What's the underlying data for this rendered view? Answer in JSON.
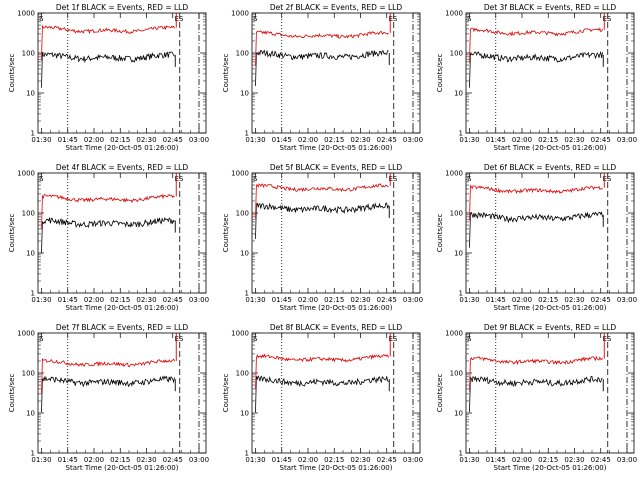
{
  "chart_data": {
    "type": "line",
    "ylabel": "Counts/sec",
    "xlabel": "Start Time (20-Oct-05 01:26:00)",
    "x_ticks": [
      "01:30",
      "01:45",
      "02:00",
      "02:15",
      "02:30",
      "02:45",
      "03:00"
    ],
    "y_scale": "log",
    "ylim": [
      1,
      1000
    ],
    "y_ticks": [
      "1",
      "10",
      "100",
      "1000"
    ],
    "markers": [
      "S",
      "E"
    ],
    "colors": {
      "events": "#000000",
      "lld": "#dd0000"
    },
    "panels": [
      {
        "title": "Det 1f BLACK = Events, RED = LLD",
        "ds_label": "ES",
        "events": 90,
        "lld": 430
      },
      {
        "title": "Det 2f BLACK = Events, RED = LLD",
        "ds_label": "ES",
        "events": 100,
        "lld": 320
      },
      {
        "title": "Det 3f BLACK = Events, RED = LLD",
        "ds_label": "ES",
        "events": 90,
        "lld": 380
      },
      {
        "title": "Det 4f BLACK = Events, RED = LLD",
        "ds_label": "ES",
        "events": 65,
        "lld": 260
      },
      {
        "title": "Det 5f BLACK = Events, RED = LLD",
        "ds_label": "ES",
        "events": 150,
        "lld": 480
      },
      {
        "title": "Det 6f BLACK = Events, RED = LLD",
        "ds_label": "ES",
        "events": 90,
        "lld": 430
      },
      {
        "title": "Det 7f BLACK = Events, RED = LLD",
        "ds_label": "ES",
        "events": 70,
        "lld": 200
      },
      {
        "title": "Det 8f BLACK = Events, RED = LLD",
        "ds_label": "ES",
        "events": 70,
        "lld": 260
      },
      {
        "title": "Det 9f BLACK = Events, RED = LLD",
        "ds_label": "ES",
        "events": 70,
        "lld": 230
      }
    ]
  }
}
